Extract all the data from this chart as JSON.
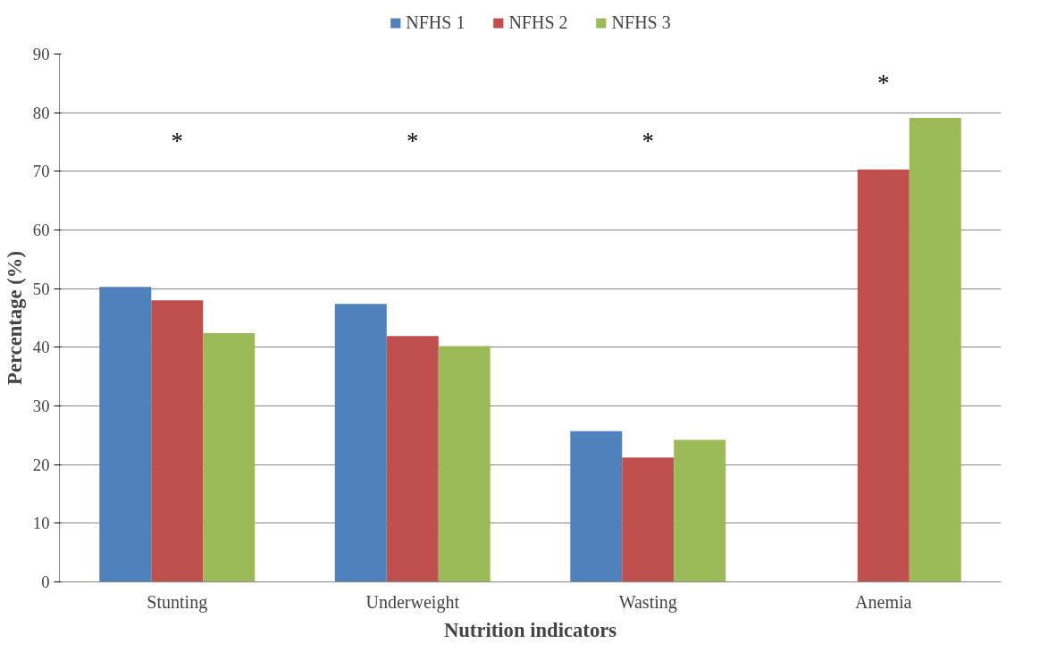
{
  "chart_data": {
    "type": "bar",
    "xlabel": "Nutrition indicators",
    "ylabel": "Percentage (%)",
    "categories": [
      "Stunting",
      "Underweight",
      "Wasting",
      "Anemia"
    ],
    "series": [
      {
        "name": "NFHS 1",
        "color": "#4f81bd",
        "values": [
          50.3,
          47.4,
          25.7,
          null
        ]
      },
      {
        "name": "NFHS 2",
        "color": "#c0504d",
        "values": [
          48.0,
          41.9,
          21.2,
          70.3
        ]
      },
      {
        "name": "NFHS 3",
        "color": "#9bbb59",
        "values": [
          42.4,
          40.2,
          24.2,
          79.1
        ]
      }
    ],
    "ylim": [
      0,
      90
    ],
    "yticks": [
      0,
      10,
      20,
      30,
      40,
      50,
      60,
      70,
      80,
      90
    ],
    "grid": "y",
    "legend": "top",
    "annotations": [
      "*",
      "*",
      "*",
      "*"
    ]
  }
}
